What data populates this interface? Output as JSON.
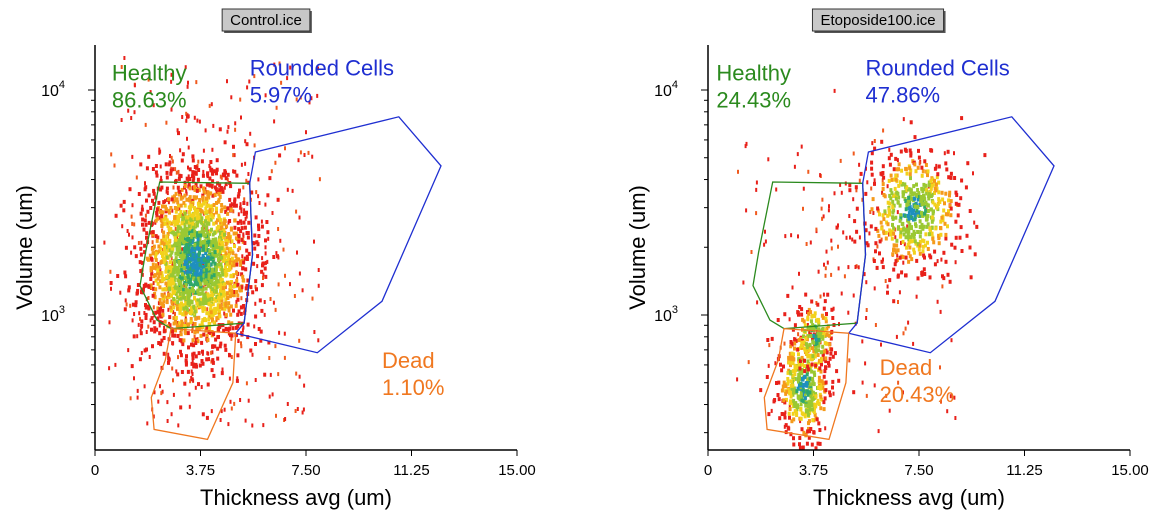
{
  "chart_data": [
    {
      "type": "scatter",
      "title": "Control.ice",
      "xlabel": "Thickness avg (um)",
      "ylabel": "Volume (um)",
      "xlim": [
        0,
        15
      ],
      "ylim_log10": [
        2.4,
        4.2
      ],
      "log_y": true,
      "grid": false,
      "x_ticks": [
        {
          "v": 0,
          "label": "0"
        },
        {
          "v": 3.75,
          "label": "3.75"
        },
        {
          "v": 7.5,
          "label": "7.50"
        },
        {
          "v": 11.25,
          "label": "11.25"
        },
        {
          "v": 15,
          "label": "15.00"
        }
      ],
      "y_ticks": [
        {
          "v": 1000,
          "base": "10",
          "exp": "3"
        },
        {
          "v": 10000,
          "base": "10",
          "exp": "4"
        }
      ],
      "density_clusters": [
        {
          "cx": 3.6,
          "cy": 1700,
          "sx": 0.95,
          "sy": 0.2,
          "n": 1900,
          "core": 0.75
        }
      ],
      "scatter_sparse": {
        "n": 520,
        "xlim": [
          0.9,
          8
        ],
        "ylim": [
          300,
          14000
        ],
        "center_x": 3.5,
        "center_y": 1700
      },
      "gates": [
        {
          "name": "Healthy",
          "label": "Healthy",
          "percent": "86.63%",
          "color": "#2b8a1e",
          "label_pos": {
            "x": 0.6,
            "y": 11000
          },
          "polygon": [
            [
              2.3,
              3900
            ],
            [
              5.5,
              3850
            ],
            [
              5.6,
              1850
            ],
            [
              5.3,
              920
            ],
            [
              2.7,
              870
            ],
            [
              2.2,
              950
            ],
            [
              1.6,
              1350
            ],
            [
              1.8,
              1900
            ]
          ]
        },
        {
          "name": "Rounded Cells",
          "label": "Rounded Cells",
          "percent": "5.97%",
          "color": "#1f2fd1",
          "label_pos": {
            "x": 5.5,
            "y": 11600
          },
          "polygon": [
            [
              5.7,
              5300
            ],
            [
              10.8,
              7600
            ],
            [
              12.3,
              4600
            ],
            [
              10.2,
              1150
            ],
            [
              7.9,
              680
            ],
            [
              5.0,
              830
            ],
            [
              5.3,
              920
            ],
            [
              5.6,
              1850
            ],
            [
              5.5,
              3850
            ]
          ]
        },
        {
          "name": "Dead",
          "label": "Dead",
          "percent": "1.10%",
          "color": "#f07820",
          "label_pos": {
            "x": 10.2,
            "y": 580
          },
          "polygon": [
            [
              2.7,
              870
            ],
            [
              5.0,
              830
            ],
            [
              4.9,
              500
            ],
            [
              4.0,
              280
            ],
            [
              2.1,
              310
            ],
            [
              2.0,
              430
            ],
            [
              2.5,
              630
            ]
          ]
        }
      ]
    },
    {
      "type": "scatter",
      "title": "Etoposide100.ice",
      "xlabel": "Thickness avg (um)",
      "ylabel": "Volume (um)",
      "xlim": [
        0,
        15
      ],
      "ylim_log10": [
        2.4,
        4.2
      ],
      "log_y": true,
      "grid": false,
      "x_ticks": [
        {
          "v": 0,
          "label": "0"
        },
        {
          "v": 3.75,
          "label": "3.75"
        },
        {
          "v": 7.5,
          "label": "7.50"
        },
        {
          "v": 11.25,
          "label": "11.25"
        },
        {
          "v": 15,
          "label": "15.00"
        }
      ],
      "y_ticks": [
        {
          "v": 1000,
          "base": "10",
          "exp": "3"
        },
        {
          "v": 10000,
          "base": "10",
          "exp": "4"
        }
      ],
      "density_clusters": [
        {
          "cx": 3.4,
          "cy": 480,
          "sx": 0.45,
          "sy": 0.12,
          "n": 420,
          "core": 0.6
        },
        {
          "cx": 3.8,
          "cy": 800,
          "sx": 0.35,
          "sy": 0.08,
          "n": 160,
          "core": 0.5
        },
        {
          "cx": 7.3,
          "cy": 2900,
          "sx": 0.85,
          "sy": 0.13,
          "n": 520,
          "core": 0.5
        }
      ],
      "scatter_sparse": {
        "n": 190,
        "xlim": [
          0.9,
          9.5
        ],
        "ylim": [
          300,
          8000
        ],
        "center_x": 5.5,
        "center_y": 1800
      },
      "gates": [
        {
          "name": "Healthy",
          "label": "Healthy",
          "percent": "24.43%",
          "color": "#2b8a1e",
          "label_pos": {
            "x": 0.3,
            "y": 11000
          },
          "polygon": [
            [
              2.3,
              3900
            ],
            [
              5.5,
              3850
            ],
            [
              5.6,
              1850
            ],
            [
              5.3,
              920
            ],
            [
              2.7,
              870
            ],
            [
              2.2,
              950
            ],
            [
              1.6,
              1350
            ],
            [
              1.8,
              1900
            ]
          ]
        },
        {
          "name": "Rounded Cells",
          "label": "Rounded Cells",
          "percent": "47.86%",
          "color": "#1f2fd1",
          "label_pos": {
            "x": 5.6,
            "y": 11600
          },
          "polygon": [
            [
              5.7,
              5300
            ],
            [
              10.8,
              7600
            ],
            [
              12.3,
              4600
            ],
            [
              10.2,
              1150
            ],
            [
              7.9,
              680
            ],
            [
              5.0,
              830
            ],
            [
              5.3,
              920
            ],
            [
              5.6,
              1850
            ],
            [
              5.5,
              3850
            ]
          ]
        },
        {
          "name": "Dead",
          "label": "Dead",
          "percent": "20.43%",
          "color": "#f07820",
          "label_pos": {
            "x": 6.1,
            "y": 540
          },
          "polygon": [
            [
              2.7,
              870
            ],
            [
              5.0,
              830
            ],
            [
              4.9,
              500
            ],
            [
              4.3,
              280
            ],
            [
              2.1,
              310
            ],
            [
              2.0,
              430
            ],
            [
              2.5,
              630
            ]
          ]
        }
      ]
    }
  ]
}
